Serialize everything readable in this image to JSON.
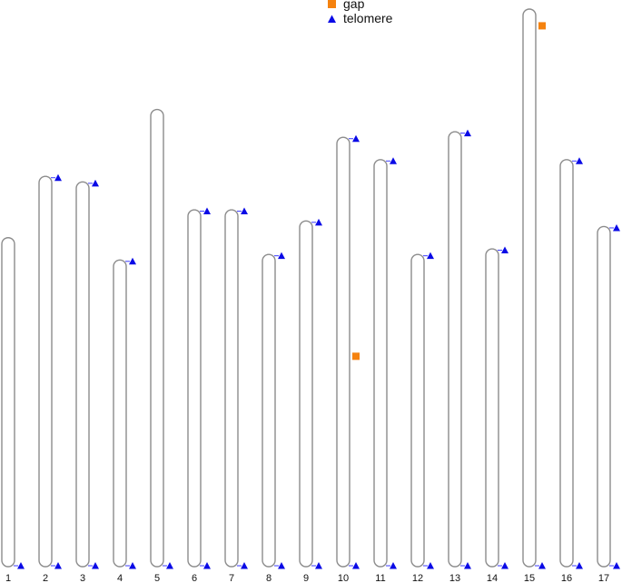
{
  "legend": {
    "items": [
      {
        "label": "gap",
        "marker": "square",
        "color": "#f5820f"
      },
      {
        "label": "telomere",
        "marker": "triangle",
        "color": "#0a0ae6"
      }
    ]
  },
  "colors": {
    "outline": "#8c8c8c",
    "telomere": "#0a0ae6",
    "gap": "#f5820f"
  },
  "chart_data": {
    "type": "ideogram",
    "y_unit": "relative length (tallest = 1.0)",
    "chromosomes": [
      {
        "label": "1",
        "length": 0.59,
        "telomere_top": false,
        "telomere_bottom": true,
        "gaps": []
      },
      {
        "label": "2",
        "length": 0.7,
        "telomere_top": true,
        "telomere_bottom": true,
        "gaps": []
      },
      {
        "label": "3",
        "length": 0.69,
        "telomere_top": true,
        "telomere_bottom": true,
        "gaps": []
      },
      {
        "label": "4",
        "length": 0.55,
        "telomere_top": true,
        "telomere_bottom": true,
        "gaps": []
      },
      {
        "label": "5",
        "length": 0.82,
        "telomere_top": false,
        "telomere_bottom": true,
        "gaps": []
      },
      {
        "label": "6",
        "length": 0.64,
        "telomere_top": true,
        "telomere_bottom": true,
        "gaps": []
      },
      {
        "label": "7",
        "length": 0.64,
        "telomere_top": true,
        "telomere_bottom": true,
        "gaps": []
      },
      {
        "label": "8",
        "length": 0.56,
        "telomere_top": true,
        "telomere_bottom": true,
        "gaps": []
      },
      {
        "label": "9",
        "length": 0.62,
        "telomere_top": true,
        "telomere_bottom": true,
        "gaps": []
      },
      {
        "label": "10",
        "length": 0.77,
        "telomere_top": true,
        "telomere_bottom": true,
        "gaps": [
          0.51
        ]
      },
      {
        "label": "11",
        "length": 0.73,
        "telomere_top": true,
        "telomere_bottom": true,
        "gaps": []
      },
      {
        "label": "12",
        "length": 0.56,
        "telomere_top": true,
        "telomere_bottom": true,
        "gaps": []
      },
      {
        "label": "13",
        "length": 0.78,
        "telomere_top": true,
        "telomere_bottom": true,
        "gaps": []
      },
      {
        "label": "14",
        "length": 0.57,
        "telomere_top": true,
        "telomere_bottom": true,
        "gaps": []
      },
      {
        "label": "15",
        "length": 1.0,
        "telomere_top": false,
        "telomere_bottom": true,
        "gaps": [
          0.03
        ]
      },
      {
        "label": "16",
        "length": 0.73,
        "telomere_top": true,
        "telomere_bottom": true,
        "gaps": []
      },
      {
        "label": "17",
        "length": 0.61,
        "telomere_top": true,
        "telomere_bottom": true,
        "gaps": []
      }
    ]
  }
}
